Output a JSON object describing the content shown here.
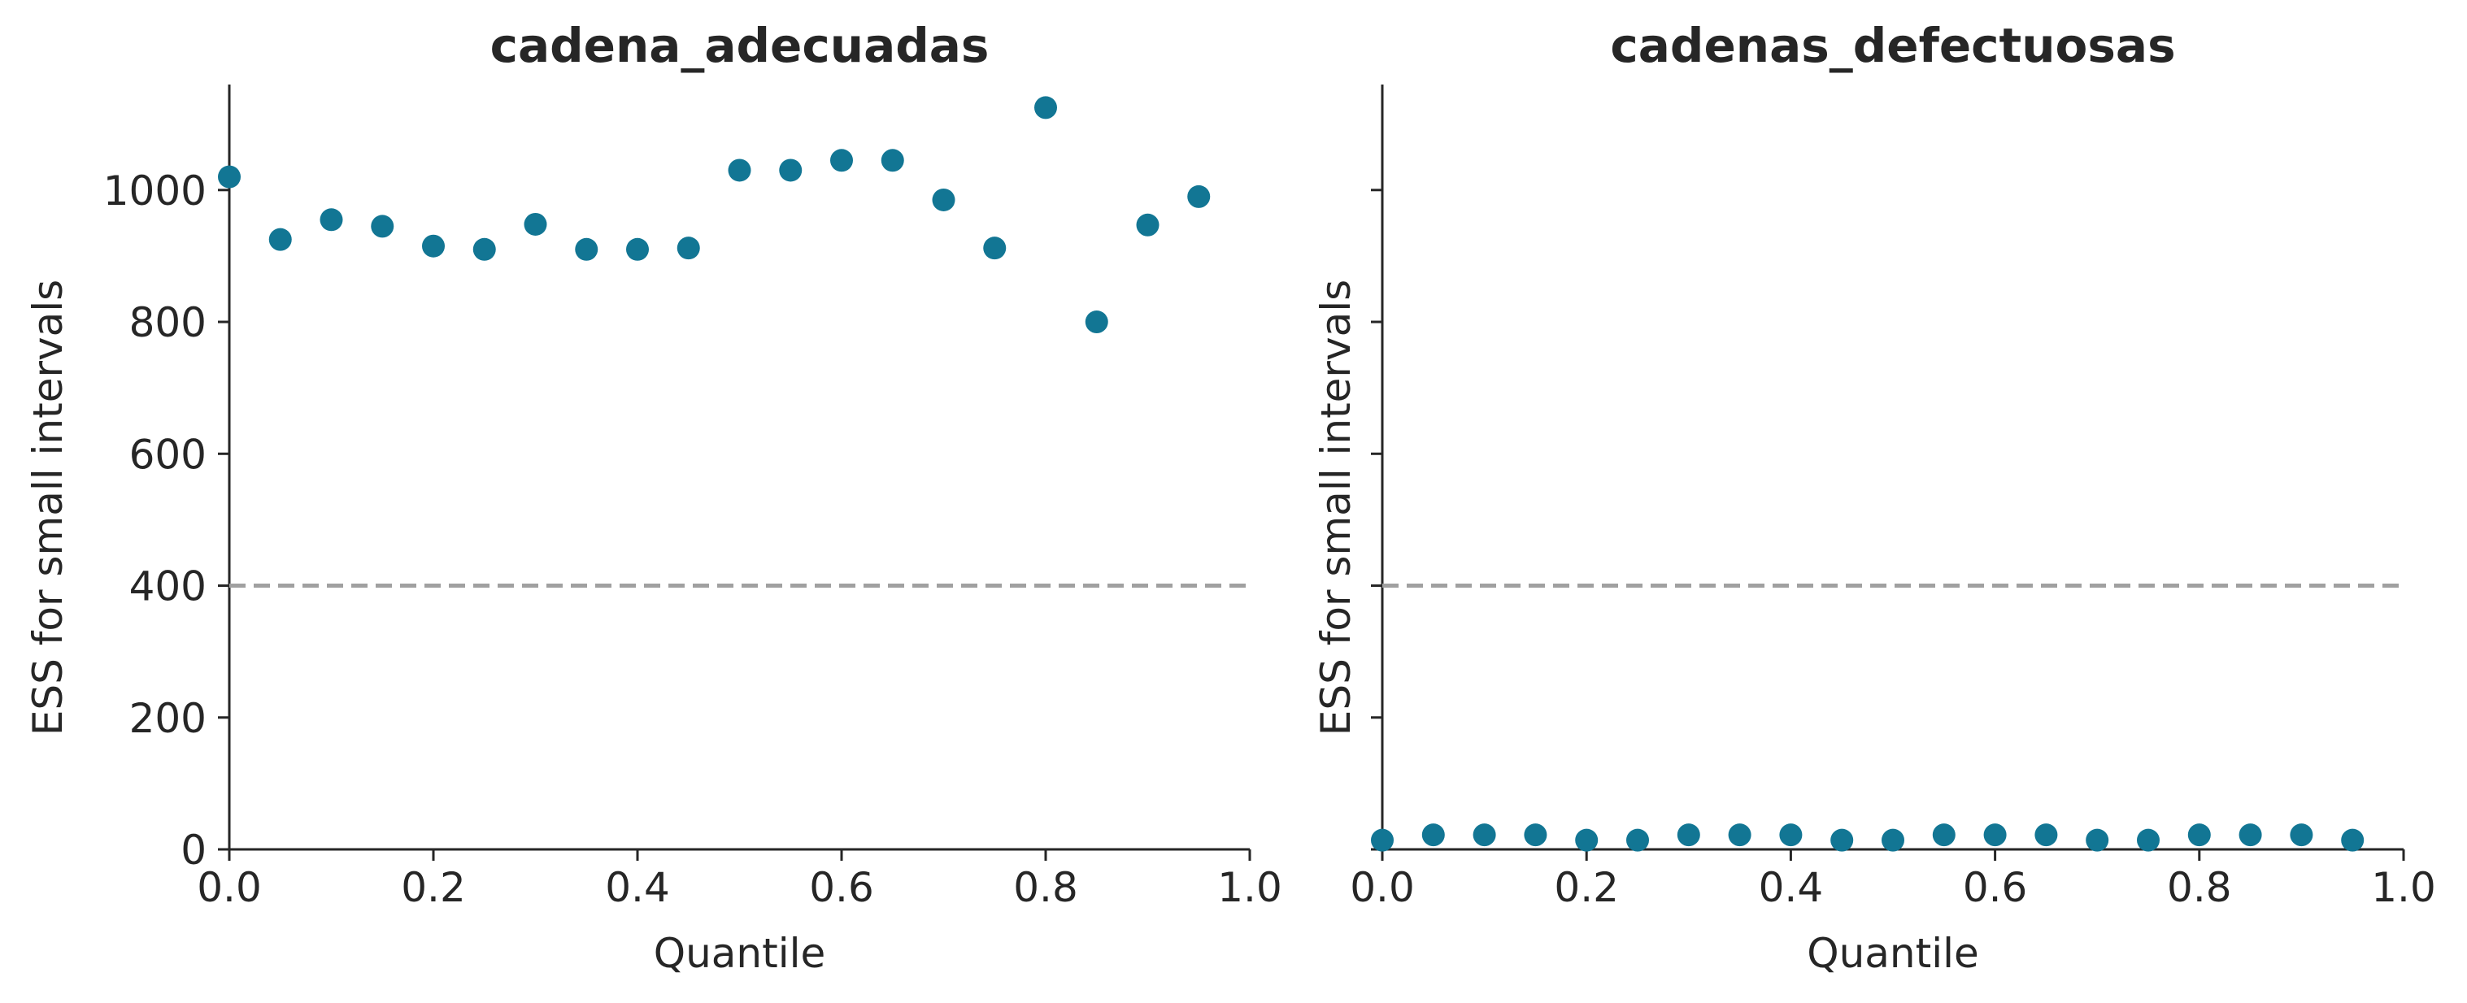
{
  "chart_data": [
    {
      "type": "scatter",
      "title": "cadena_adecuadas",
      "xlabel": "Quantile",
      "ylabel": "ESS for small intervals",
      "xlim": [
        0,
        1
      ],
      "ylim": [
        0,
        1160
      ],
      "xticks": [
        "0.0",
        "0.2",
        "0.4",
        "0.6",
        "0.8",
        "1.0"
      ],
      "yticks": [
        "0",
        "200",
        "400",
        "600",
        "800",
        "1000"
      ],
      "show_y_tick_labels": true,
      "reference_line": 400,
      "marker_color": "#127694",
      "reference_color": "#a0a0a0",
      "grid": false,
      "x": [
        0.0,
        0.05,
        0.1,
        0.15,
        0.2,
        0.25,
        0.3,
        0.35,
        0.4,
        0.45,
        0.5,
        0.55,
        0.6,
        0.65,
        0.7,
        0.75,
        0.8,
        0.85,
        0.9,
        0.95
      ],
      "y": [
        1020,
        925,
        955,
        945,
        915,
        910,
        948,
        910,
        910,
        912,
        1030,
        1030,
        1045,
        1045,
        985,
        912,
        1125,
        800,
        947,
        990
      ]
    },
    {
      "type": "scatter",
      "title": "cadenas_defectuosas",
      "xlabel": "Quantile",
      "ylabel": "ESS for small intervals",
      "xlim": [
        0,
        1
      ],
      "ylim": [
        0,
        1160
      ],
      "xticks": [
        "0.0",
        "0.2",
        "0.4",
        "0.6",
        "0.8",
        "1.0"
      ],
      "yticks": [
        "0",
        "200",
        "400",
        "600",
        "800",
        "1000"
      ],
      "show_y_tick_labels": false,
      "reference_line": 400,
      "marker_color": "#127694",
      "reference_color": "#a0a0a0",
      "grid": false,
      "x": [
        0.0,
        0.05,
        0.1,
        0.15,
        0.2,
        0.25,
        0.3,
        0.35,
        0.4,
        0.45,
        0.5,
        0.55,
        0.6,
        0.65,
        0.7,
        0.75,
        0.8,
        0.85,
        0.9,
        0.95
      ],
      "y": [
        14,
        22,
        22,
        22,
        14,
        14,
        22,
        22,
        22,
        14,
        14,
        22,
        22,
        22,
        14,
        14,
        22,
        22,
        22,
        14
      ]
    }
  ]
}
